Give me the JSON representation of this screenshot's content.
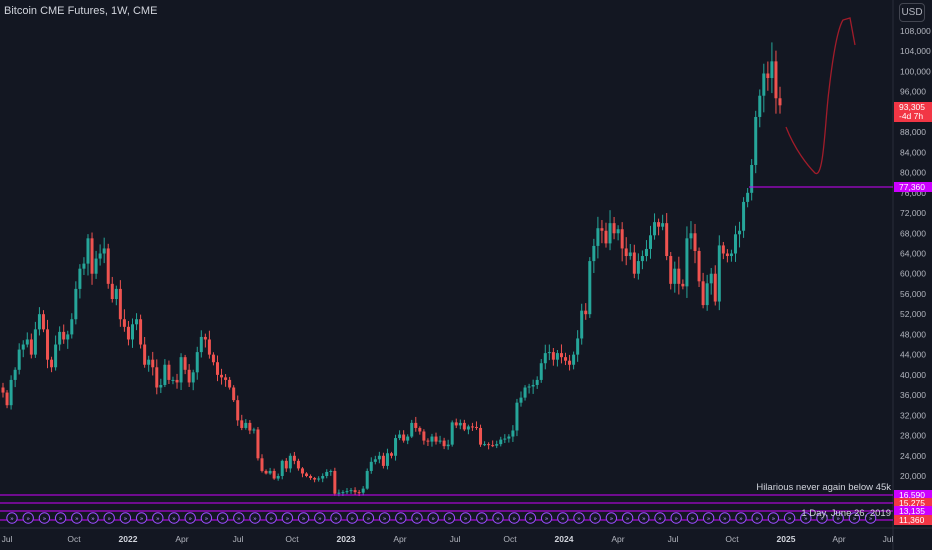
{
  "header": {
    "title": "Bitcoin CME Futures, 1W, CME",
    "currency": "USD"
  },
  "colors": {
    "background": "#131722",
    "up": "#26a69a",
    "down": "#ef5350",
    "grid": "#1e222d",
    "purple": "#cc00ff",
    "drawing": "#a11c2a"
  },
  "chart_data": {
    "type": "candlestick",
    "ylim": [
      10000,
      112000
    ],
    "y_ticks": [
      "108,000",
      "104,000",
      "100,000",
      "96,000",
      "92,000",
      "88,000",
      "84,000",
      "80,000",
      "76,000",
      "72,000",
      "68,000",
      "64,000",
      "60,000",
      "56,000",
      "52,000",
      "48,000",
      "44,000",
      "40,000",
      "36,000",
      "32,000",
      "28,000",
      "24,000",
      "20,000"
    ],
    "x_ticks": [
      {
        "label": "Jul",
        "bold": false
      },
      {
        "label": "Oct",
        "bold": false
      },
      {
        "label": "2022",
        "bold": true
      },
      {
        "label": "Apr",
        "bold": false
      },
      {
        "label": "Jul",
        "bold": false
      },
      {
        "label": "Oct",
        "bold": false
      },
      {
        "label": "2023",
        "bold": true
      },
      {
        "label": "Apr",
        "bold": false
      },
      {
        "label": "Jul",
        "bold": false
      },
      {
        "label": "Oct",
        "bold": false
      },
      {
        "label": "2024",
        "bold": true
      },
      {
        "label": "Apr",
        "bold": false
      },
      {
        "label": "Jul",
        "bold": false
      },
      {
        "label": "Oct",
        "bold": false
      },
      {
        "label": "2025",
        "bold": true
      },
      {
        "label": "Apr",
        "bold": false
      },
      {
        "label": "Jul",
        "bold": false
      }
    ],
    "closes": [
      36500,
      34000,
      39000,
      41000,
      45000,
      46000,
      47000,
      44000,
      49000,
      52000,
      49000,
      43000,
      41500,
      46000,
      48500,
      47000,
      48000,
      51000,
      57000,
      61000,
      62000,
      67000,
      60000,
      63000,
      64000,
      65000,
      58000,
      55000,
      57000,
      51000,
      49500,
      47000,
      50000,
      51000,
      46000,
      42000,
      43000,
      41500,
      37500,
      38000,
      42000,
      39000,
      39000,
      38500,
      43500,
      41000,
      38500,
      40500,
      44500,
      47500,
      47000,
      44000,
      42500,
      40000,
      39500,
      39000,
      37500,
      35000,
      31000,
      29500,
      30500,
      29000,
      29200,
      23500,
      21000,
      20500,
      21000,
      19500,
      20000,
      23000,
      21500,
      24000,
      23000,
      21500,
      20500,
      20000,
      19600,
      19300,
      19500,
      20000,
      20800,
      21000,
      16500,
      16700,
      16800,
      17000,
      17200,
      16800,
      16700,
      17500,
      21000,
      22800,
      23300,
      24000,
      22000,
      24500,
      24000,
      27500,
      28200,
      27000,
      27800,
      30500,
      29500,
      28800,
      27000,
      26800,
      27800,
      26800,
      27000,
      25900,
      26200,
      30600,
      30000,
      30500,
      29200,
      29800,
      29700,
      29500,
      26200,
      26300,
      26100,
      26000,
      26300,
      27200,
      27400,
      27800,
      29000,
      34500,
      35500,
      37500,
      37700,
      38000,
      39000,
      42300,
      44300,
      44500,
      43000,
      44300,
      43500,
      42800,
      42000,
      44000,
      47200,
      52700,
      52000,
      62500,
      65500,
      69000,
      68500,
      66000,
      70000,
      68000,
      68800,
      65000,
      63500,
      64200,
      60000,
      62500,
      63500,
      64900,
      67600,
      70200,
      69300,
      70000,
      63500,
      58000,
      61000,
      58000,
      57500,
      67000,
      68000,
      64500,
      58500,
      53800,
      58100,
      60000,
      54500,
      65600,
      64000,
      63500,
      64000,
      67800,
      68500,
      74200,
      76000,
      81500,
      91000,
      95200,
      99600,
      98700,
      102000,
      94700,
      93305
    ],
    "last_price": "93,305",
    "last_price_sub": "-4d 7h",
    "levels": [
      {
        "label": "77,360",
        "value": 77360
      },
      {
        "label": "16,590",
        "value": 16590
      },
      {
        "label": "15,275",
        "value": 15275
      },
      {
        "label": "13,135",
        "value": 13135
      },
      {
        "label": "11,360",
        "value": 11360
      }
    ],
    "annotations": [
      "Hilarious never again below 45k",
      "1 Day, June 26, 2019"
    ]
  }
}
